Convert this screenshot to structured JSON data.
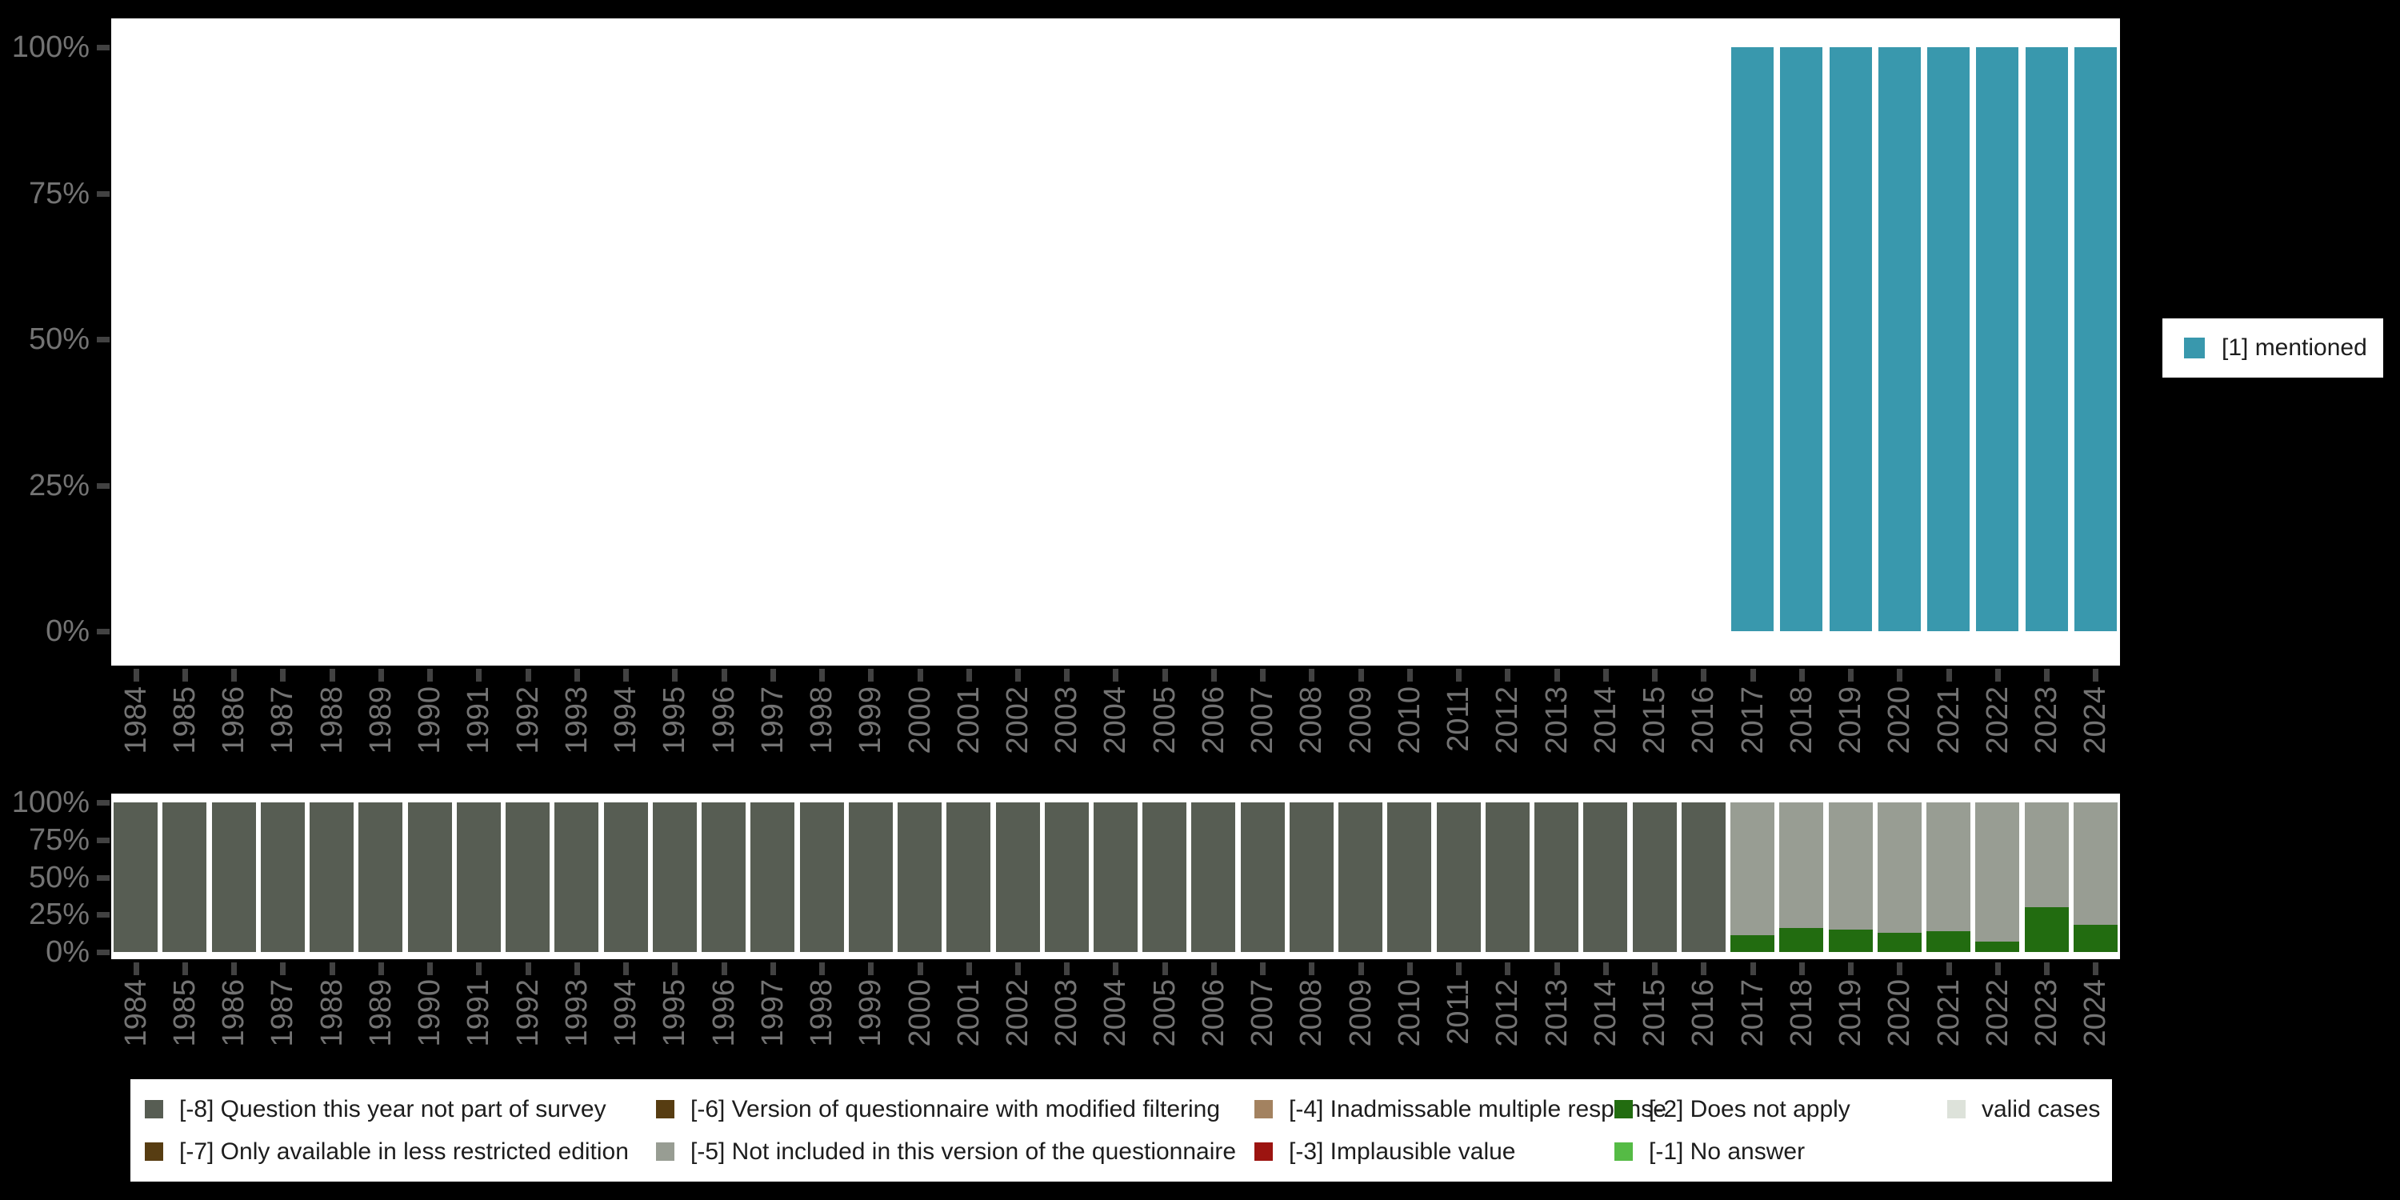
{
  "page": {
    "background": "#000000",
    "panel_background": "#ffffff"
  },
  "axis_style": {
    "text_color": "#737373",
    "tick_color": "#424242"
  },
  "right_legend": {
    "label": "[1] mentioned",
    "swatch_color": "#3998ad"
  },
  "bottom_legend": {
    "items": [
      {
        "name": "legend-item-code-minus8",
        "label": "[-8] Question this year not part of survey",
        "color": "#575d53"
      },
      {
        "name": "legend-item-code-minus6",
        "label": "[-6] Version of questionnaire with modified filtering",
        "color": "#573d12"
      },
      {
        "name": "legend-item-code-minus4",
        "label": "[-4] Inadmissable multiple response",
        "color": "#a38260"
      },
      {
        "name": "legend-item-code-minus2",
        "label": "[-2] Does not apply",
        "color": "#226c10"
      },
      {
        "name": "legend-item-valid-cases",
        "label": "valid cases",
        "color": "#dde2da"
      },
      {
        "name": "legend-item-code-minus7",
        "label": "[-7] Only available in less restricted edition",
        "color": "#573d12"
      },
      {
        "name": "legend-item-code-minus5",
        "label": "[-5] Not included in this version of the questionnaire",
        "color": "#989d93"
      },
      {
        "name": "legend-item-code-minus3",
        "label": "[-3] Implausible value",
        "color": "#9c1410"
      },
      {
        "name": "legend-item-code-minus1",
        "label": "[-1] No answer",
        "color": "#55bb45"
      }
    ]
  },
  "chart_data": [
    {
      "id": "mentioned-chart",
      "type": "bar",
      "stacked": true,
      "unit": "percent of valid cases",
      "title": "",
      "xlabel": "",
      "ylabel": "",
      "grid": false,
      "legend_position": "right",
      "ylim": [
        0,
        100
      ],
      "ytick_values": [
        100,
        75,
        50,
        25,
        0
      ],
      "ytick_labels": [
        "100%",
        "75%",
        "50%",
        "25%",
        "0%"
      ],
      "categories": [
        "1984",
        "1985",
        "1986",
        "1987",
        "1988",
        "1989",
        "1990",
        "1991",
        "1992",
        "1993",
        "1994",
        "1995",
        "1996",
        "1997",
        "1998",
        "1999",
        "2000",
        "2001",
        "2002",
        "2003",
        "2004",
        "2005",
        "2006",
        "2007",
        "2008",
        "2009",
        "2010",
        "2011",
        "2012",
        "2013",
        "2014",
        "2015",
        "2016",
        "2017",
        "2018",
        "2019",
        "2020",
        "2021",
        "2022",
        "2023",
        "2024"
      ],
      "series": [
        {
          "name": "[1] mentioned",
          "color": "#3998ad",
          "values": [
            0,
            0,
            0,
            0,
            0,
            0,
            0,
            0,
            0,
            0,
            0,
            0,
            0,
            0,
            0,
            0,
            0,
            0,
            0,
            0,
            0,
            0,
            0,
            0,
            0,
            0,
            0,
            0,
            0,
            0,
            0,
            0,
            0,
            100,
            100,
            100,
            100,
            100,
            100,
            100,
            100
          ]
        }
      ]
    },
    {
      "id": "missing-values-chart",
      "type": "bar",
      "stacked": true,
      "unit": "percent of total cases",
      "title": "",
      "xlabel": "",
      "ylabel": "",
      "grid": false,
      "legend_position": "bottom",
      "ylim": [
        0,
        100
      ],
      "ytick_values": [
        100,
        75,
        50,
        25,
        0
      ],
      "ytick_labels": [
        "100%",
        "75%",
        "50%",
        "25%",
        "0%"
      ],
      "categories": [
        "1984",
        "1985",
        "1986",
        "1987",
        "1988",
        "1989",
        "1990",
        "1991",
        "1992",
        "1993",
        "1994",
        "1995",
        "1996",
        "1997",
        "1998",
        "1999",
        "2000",
        "2001",
        "2002",
        "2003",
        "2004",
        "2005",
        "2006",
        "2007",
        "2008",
        "2009",
        "2010",
        "2011",
        "2012",
        "2013",
        "2014",
        "2015",
        "2016",
        "2017",
        "2018",
        "2019",
        "2020",
        "2021",
        "2022",
        "2023",
        "2024"
      ],
      "stack_order_bottom_to_top": [
        "[-2] Does not apply",
        "[-5] Not included in this version of the questionnaire",
        "[-8] Question this year not part of survey"
      ],
      "series": [
        {
          "name": "[-8] Question this year not part of survey",
          "color": "#575d53",
          "values": [
            100,
            100,
            100,
            100,
            100,
            100,
            100,
            100,
            100,
            100,
            100,
            100,
            100,
            100,
            100,
            100,
            100,
            100,
            100,
            100,
            100,
            100,
            100,
            100,
            100,
            100,
            100,
            100,
            100,
            100,
            100,
            100,
            100,
            0,
            0,
            0,
            0,
            0,
            0,
            0,
            0
          ]
        },
        {
          "name": "[-5] Not included in this version of the questionnaire",
          "color": "#989d93",
          "values": [
            0,
            0,
            0,
            0,
            0,
            0,
            0,
            0,
            0,
            0,
            0,
            0,
            0,
            0,
            0,
            0,
            0,
            0,
            0,
            0,
            0,
            0,
            0,
            0,
            0,
            0,
            0,
            0,
            0,
            0,
            0,
            0,
            0,
            89,
            84,
            85,
            87,
            86,
            93,
            70,
            82
          ]
        },
        {
          "name": "[-2] Does not apply",
          "color": "#226c10",
          "values": [
            0,
            0,
            0,
            0,
            0,
            0,
            0,
            0,
            0,
            0,
            0,
            0,
            0,
            0,
            0,
            0,
            0,
            0,
            0,
            0,
            0,
            0,
            0,
            0,
            0,
            0,
            0,
            0,
            0,
            0,
            0,
            0,
            0,
            11,
            16,
            15,
            13,
            14,
            7,
            30,
            18
          ]
        }
      ]
    }
  ]
}
